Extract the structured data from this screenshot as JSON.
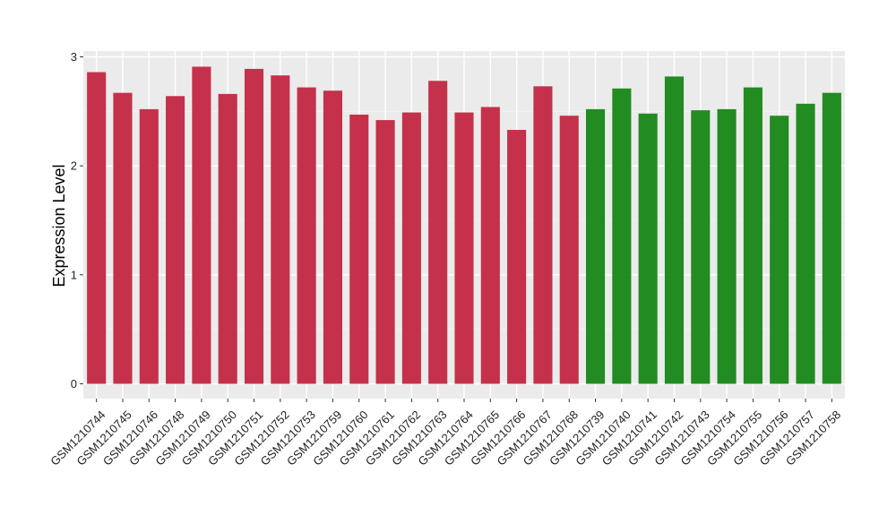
{
  "chart_data": {
    "type": "bar",
    "title": "",
    "xlabel": "",
    "ylabel": "Expression Level",
    "ylim": [
      0,
      3.05
    ],
    "yticks": [
      "0",
      "1",
      "2",
      "3"
    ],
    "grid": true,
    "legend": "none",
    "categories": [
      "GSM1210744",
      "GSM1210745",
      "GSM1210746",
      "GSM1210748",
      "GSM1210749",
      "GSM1210750",
      "GSM1210751",
      "GSM1210752",
      "GSM1210753",
      "GSM1210759",
      "GSM1210760",
      "GSM1210761",
      "GSM1210762",
      "GSM1210763",
      "GSM1210764",
      "GSM1210765",
      "GSM1210766",
      "GSM1210767",
      "GSM1210768",
      "GSM1210739",
      "GSM1210740",
      "GSM1210741",
      "GSM1210742",
      "GSM1210743",
      "GSM1210754",
      "GSM1210755",
      "GSM1210756",
      "GSM1210757",
      "GSM1210758"
    ],
    "values": [
      2.86,
      2.67,
      2.52,
      2.64,
      2.91,
      2.66,
      2.89,
      2.83,
      2.72,
      2.69,
      2.47,
      2.42,
      2.49,
      2.78,
      2.49,
      2.54,
      2.33,
      2.73,
      2.46,
      2.52,
      2.71,
      2.48,
      2.82,
      2.51,
      2.52,
      2.72,
      2.46,
      2.57,
      2.67
    ],
    "groups": [
      "red",
      "red",
      "red",
      "red",
      "red",
      "red",
      "red",
      "red",
      "red",
      "red",
      "red",
      "red",
      "red",
      "red",
      "red",
      "red",
      "red",
      "red",
      "red",
      "green",
      "green",
      "green",
      "green",
      "green",
      "green",
      "green",
      "green",
      "green",
      "green"
    ],
    "colors": {
      "red": "#C5314A",
      "green": "#228B22",
      "panel_background": "#EBEBEB",
      "grid_major": "#FFFFFF"
    }
  }
}
